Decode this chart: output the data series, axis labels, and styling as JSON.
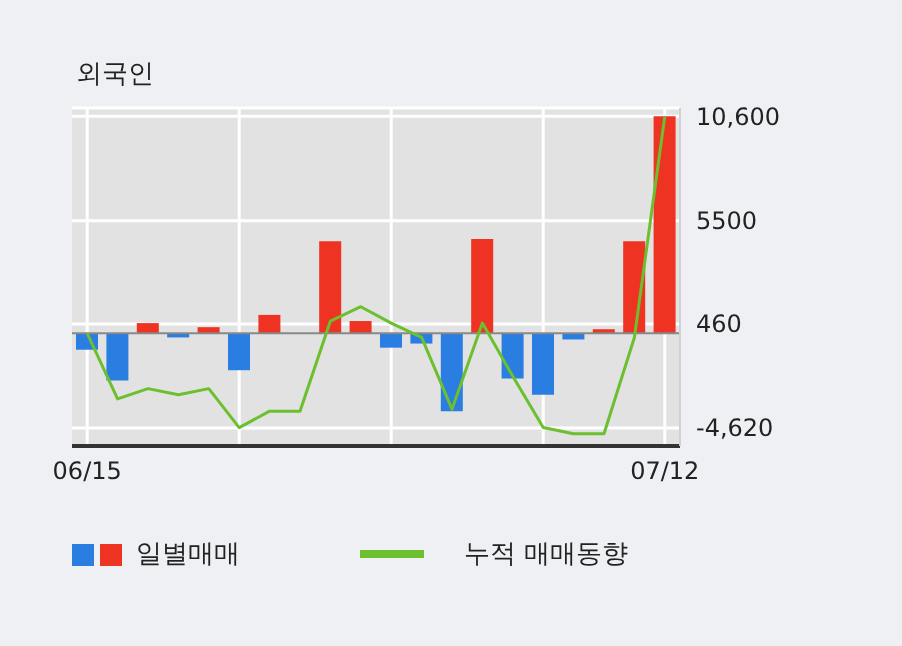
{
  "chart_data": {
    "type": "bar",
    "title": "외국인",
    "categories": [
      "06/15",
      null,
      null,
      null,
      null,
      null,
      null,
      null,
      null,
      null,
      null,
      null,
      null,
      null,
      null,
      null,
      null,
      null,
      null,
      "07/12"
    ],
    "series": [
      {
        "name": "일별매매",
        "colors": [
          "#2a7de1",
          "#2a7de1",
          "#ee3322",
          "#2a7de1",
          "#ee3322",
          "#2a7de1",
          "#ee3322",
          "#ee3322",
          "#ee3322",
          "#ee3322",
          "#2a7de1",
          "#2a7de1",
          "#2a7de1",
          "#ee3322",
          "#2a7de1",
          "#2a7de1",
          "#2a7de1",
          "#ee3322",
          "#ee3322",
          "#ee3322"
        ],
        "values": [
          -800,
          -2300,
          500,
          -200,
          300,
          -1800,
          900,
          0,
          4500,
          600,
          -700,
          -500,
          -3800,
          4600,
          -2200,
          -3000,
          -300,
          200,
          4500,
          10600
        ]
      },
      {
        "name": "누적 매매동향",
        "type": "line",
        "color": "#6cbf2e",
        "values": [
          0,
          -3200,
          -2700,
          -3000,
          -2700,
          -4600,
          -3800,
          -3800,
          600,
          1300,
          500,
          -200,
          -3700,
          500,
          -2100,
          -4600,
          -4900,
          -4900,
          -200,
          10600
        ]
      }
    ],
    "ylim": [
      -5500,
      11000
    ],
    "yticks": [
      {
        "value": 10600,
        "label": "10,600"
      },
      5500,
      460,
      {
        "value": -4620,
        "label": "-4,620"
      }
    ],
    "ref_lines": [
      {
        "axis": "y",
        "value": 0,
        "color": "#888888"
      }
    ],
    "grid": true,
    "legend": "bottom",
    "marker": "none"
  }
}
